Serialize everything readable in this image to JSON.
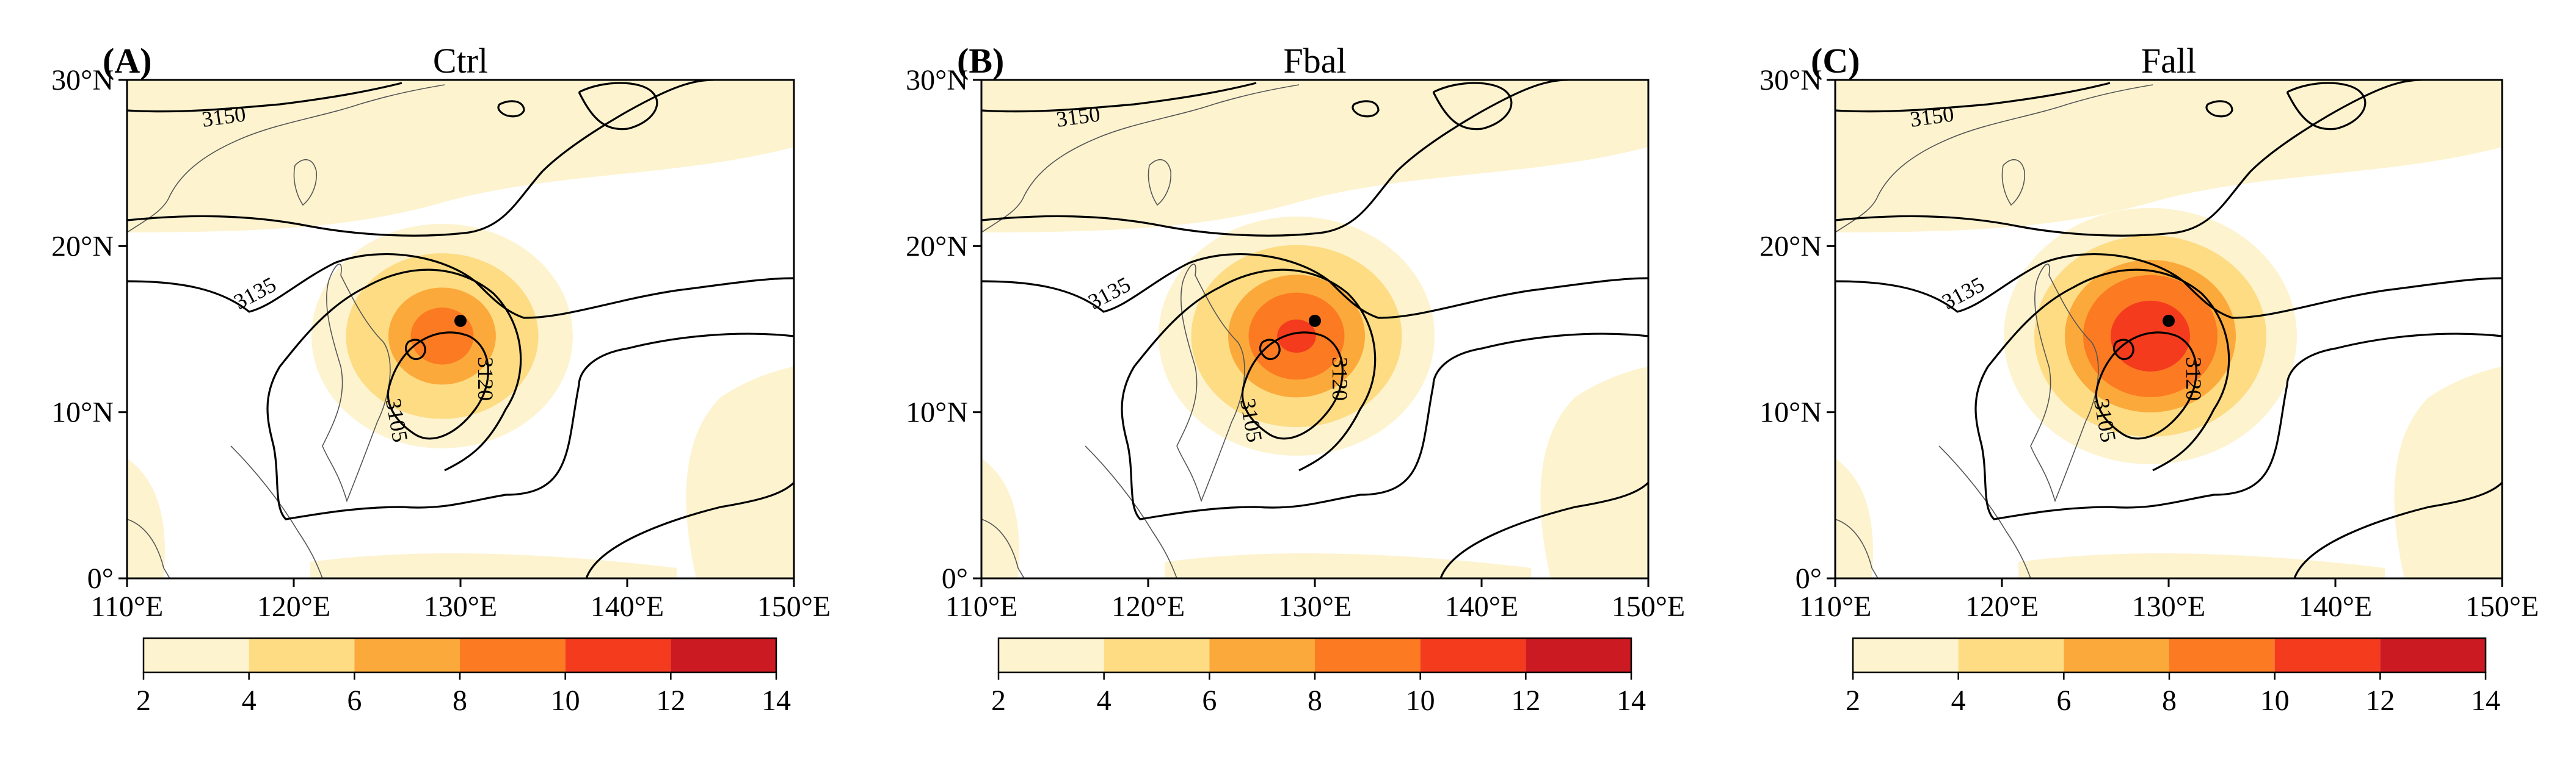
{
  "panels": [
    {
      "letter": "(A)",
      "title": "Ctrl",
      "intensity": 0.35
    },
    {
      "letter": "(B)",
      "title": "Fbal",
      "intensity": 0.65
    },
    {
      "letter": "(C)",
      "title": "Fall",
      "intensity": 1.0
    }
  ],
  "axes": {
    "lat_ticks": [
      "0°",
      "10°N",
      "20°N",
      "30°N"
    ],
    "lon_ticks": [
      "110°E",
      "120°E",
      "130°E",
      "140°E",
      "150°E"
    ],
    "lon_range": [
      110,
      150
    ],
    "lat_range": [
      0,
      30
    ]
  },
  "colorbar": {
    "ticks": [
      "2",
      "4",
      "6",
      "8",
      "10",
      "12",
      "14"
    ],
    "colors": [
      "#fdf3cf",
      "#fddc84",
      "#fca93b",
      "#fb7a22",
      "#f43b1e",
      "#cc1a22"
    ]
  },
  "contour_labels": [
    "3150",
    "3135",
    "3120",
    "3105"
  ],
  "typhoon_center": {
    "lon": 130,
    "lat": 15.5
  }
}
